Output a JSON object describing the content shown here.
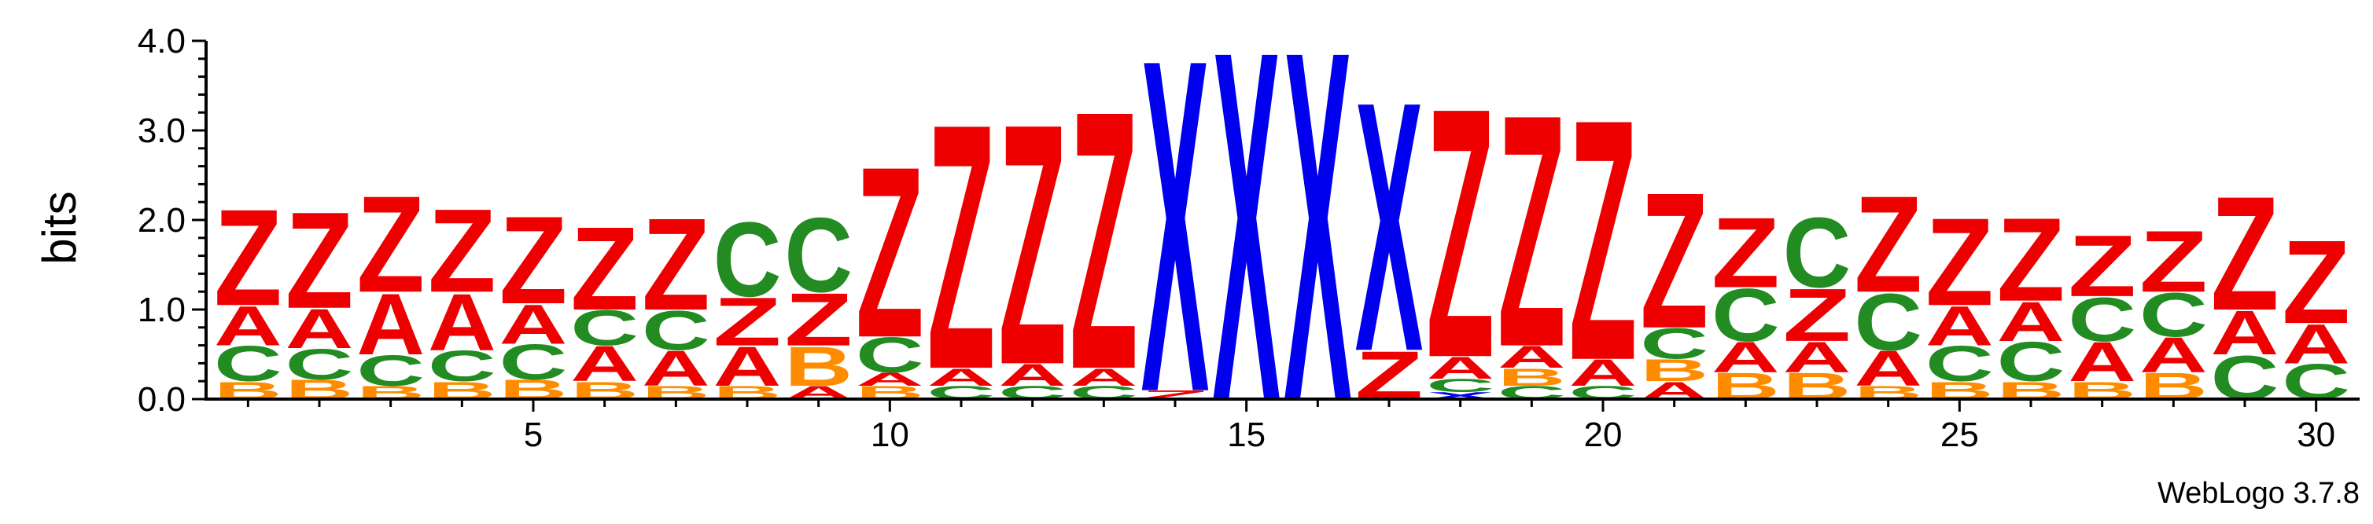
{
  "chart_data": {
    "type": "sequence-logo",
    "ylabel": "bits",
    "ylim": [
      0,
      4.0
    ],
    "y_ticks": [
      "0.0",
      "1.0",
      "2.0",
      "3.0",
      "4.0"
    ],
    "x_tick_labels": [
      "5",
      "10",
      "15",
      "20",
      "25",
      "30"
    ],
    "x_tick_positions": [
      5,
      10,
      15,
      20,
      25,
      30
    ],
    "positions": 30,
    "colors": {
      "Z": "#ee0000",
      "A": "#ee0000",
      "C": "#228b22",
      "B": "#ff8c00",
      "X": "#0000ee"
    },
    "columns": [
      {
        "pos": 1,
        "stack": [
          [
            "B",
            0.2
          ],
          [
            "C",
            0.4
          ],
          [
            "A",
            0.45
          ],
          [
            "Z",
            1.1
          ]
        ]
      },
      {
        "pos": 2,
        "stack": [
          [
            "B",
            0.22
          ],
          [
            "C",
            0.35
          ],
          [
            "A",
            0.45
          ],
          [
            "Z",
            1.1
          ]
        ]
      },
      {
        "pos": 3,
        "stack": [
          [
            "B",
            0.15
          ],
          [
            "C",
            0.35
          ],
          [
            "A",
            0.7
          ],
          [
            "Z",
            1.1
          ]
        ]
      },
      {
        "pos": 4,
        "stack": [
          [
            "B",
            0.2
          ],
          [
            "C",
            0.35
          ],
          [
            "A",
            0.65
          ],
          [
            "Z",
            0.95
          ]
        ]
      },
      {
        "pos": 5,
        "stack": [
          [
            "B",
            0.22
          ],
          [
            "C",
            0.4
          ],
          [
            "A",
            0.45
          ],
          [
            "Z",
            1.0
          ]
        ]
      },
      {
        "pos": 6,
        "stack": [
          [
            "B",
            0.2
          ],
          [
            "A",
            0.4
          ],
          [
            "C",
            0.4
          ],
          [
            "Z",
            0.95
          ]
        ]
      },
      {
        "pos": 7,
        "stack": [
          [
            "B",
            0.15
          ],
          [
            "A",
            0.4
          ],
          [
            "C",
            0.45
          ],
          [
            "Z",
            1.05
          ]
        ]
      },
      {
        "pos": 8,
        "stack": [
          [
            "B",
            0.15
          ],
          [
            "A",
            0.45
          ],
          [
            "Z",
            0.55
          ],
          [
            "C",
            0.85
          ]
        ]
      },
      {
        "pos": 9,
        "stack": [
          [
            "A",
            0.15
          ],
          [
            "B",
            0.45
          ],
          [
            "Z",
            0.6
          ],
          [
            "C",
            0.85
          ]
        ]
      },
      {
        "pos": 10,
        "stack": [
          [
            "B",
            0.15
          ],
          [
            "A",
            0.15
          ],
          [
            "C",
            0.4
          ],
          [
            "Z",
            1.95
          ]
        ]
      },
      {
        "pos": 11,
        "stack": [
          [
            "C",
            0.15
          ],
          [
            "A",
            0.2
          ],
          [
            "Z",
            2.8
          ]
        ]
      },
      {
        "pos": 12,
        "stack": [
          [
            "C",
            0.15
          ],
          [
            "A",
            0.25
          ],
          [
            "Z",
            2.75
          ]
        ]
      },
      {
        "pos": 13,
        "stack": [
          [
            "C",
            0.15
          ],
          [
            "A",
            0.2
          ],
          [
            "Z",
            2.95
          ]
        ]
      },
      {
        "pos": 14,
        "stack": [
          [
            "Z",
            0.1
          ],
          [
            "X",
            3.8
          ]
        ]
      },
      {
        "pos": 15,
        "stack": [
          [
            "X",
            4.0
          ]
        ]
      },
      {
        "pos": 16,
        "stack": [
          [
            "X",
            4.0
          ]
        ]
      },
      {
        "pos": 17,
        "stack": [
          [
            "Z",
            0.55
          ],
          [
            "X",
            2.85
          ]
        ]
      },
      {
        "pos": 18,
        "stack": [
          [
            "X",
            0.08
          ],
          [
            "C",
            0.15
          ],
          [
            "A",
            0.25
          ],
          [
            "Z",
            2.85
          ]
        ]
      },
      {
        "pos": 19,
        "stack": [
          [
            "C",
            0.15
          ],
          [
            "B",
            0.2
          ],
          [
            "A",
            0.25
          ],
          [
            "Z",
            2.65
          ]
        ]
      },
      {
        "pos": 20,
        "stack": [
          [
            "C",
            0.15
          ],
          [
            "A",
            0.3
          ],
          [
            "Z",
            2.75
          ]
        ]
      },
      {
        "pos": 21,
        "stack": [
          [
            "A",
            0.2
          ],
          [
            "B",
            0.25
          ],
          [
            "C",
            0.35
          ],
          [
            "Z",
            1.55
          ]
        ]
      },
      {
        "pos": 22,
        "stack": [
          [
            "B",
            0.3
          ],
          [
            "A",
            0.35
          ],
          [
            "C",
            0.6
          ],
          [
            "Z",
            0.8
          ]
        ]
      },
      {
        "pos": 23,
        "stack": [
          [
            "B",
            0.3
          ],
          [
            "A",
            0.35
          ],
          [
            "Z",
            0.6
          ],
          [
            "C",
            0.8
          ]
        ]
      },
      {
        "pos": 24,
        "stack": [
          [
            "B",
            0.15
          ],
          [
            "A",
            0.4
          ],
          [
            "C",
            0.65
          ],
          [
            "Z",
            1.1
          ]
        ]
      },
      {
        "pos": 25,
        "stack": [
          [
            "B",
            0.2
          ],
          [
            "C",
            0.4
          ],
          [
            "A",
            0.45
          ],
          [
            "Z",
            1.0
          ]
        ]
      },
      {
        "pos": 26,
        "stack": [
          [
            "B",
            0.2
          ],
          [
            "C",
            0.45
          ],
          [
            "A",
            0.45
          ],
          [
            "Z",
            0.95
          ]
        ]
      },
      {
        "pos": 27,
        "stack": [
          [
            "B",
            0.2
          ],
          [
            "A",
            0.45
          ],
          [
            "C",
            0.5
          ],
          [
            "Z",
            0.7
          ]
        ]
      },
      {
        "pos": 28,
        "stack": [
          [
            "B",
            0.3
          ],
          [
            "A",
            0.4
          ],
          [
            "C",
            0.5
          ],
          [
            "Z",
            0.7
          ]
        ]
      },
      {
        "pos": 29,
        "stack": [
          [
            "C",
            0.5
          ],
          [
            "A",
            0.5
          ],
          [
            "Z",
            1.3
          ]
        ]
      },
      {
        "pos": 30,
        "stack": [
          [
            "C",
            0.4
          ],
          [
            "A",
            0.45
          ],
          [
            "Z",
            0.95
          ]
        ]
      }
    ]
  },
  "credit": "WebLogo 3.7.8"
}
